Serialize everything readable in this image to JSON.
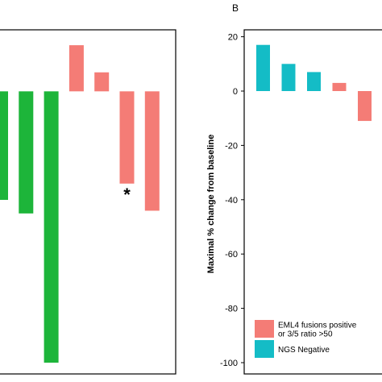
{
  "panel_b_label": "B",
  "colors": {
    "green": "#1db53a",
    "salmon": "#f47c76",
    "teal": "#14bcc6"
  },
  "chart_data": [
    {
      "panel": "A",
      "type": "bar",
      "partial": true,
      "bars": [
        {
          "value": -40,
          "color": "green"
        },
        {
          "value": -45,
          "color": "green"
        },
        {
          "value": -100,
          "color": "green"
        },
        {
          "value": 17,
          "color": "salmon"
        },
        {
          "value": 7,
          "color": "salmon"
        },
        {
          "value": -34,
          "color": "salmon",
          "annotation": "*"
        },
        {
          "value": -44,
          "color": "salmon"
        }
      ],
      "ylim": [
        -100,
        20
      ]
    },
    {
      "panel": "B",
      "type": "bar",
      "ylabel": "Maximal % change from baseline",
      "yticks": [
        20,
        0,
        -20,
        -40,
        -60,
        -80,
        -100
      ],
      "ylim": [
        -103,
        23
      ],
      "bars": [
        {
          "value": 17,
          "color": "teal"
        },
        {
          "value": 10,
          "color": "teal"
        },
        {
          "value": 7,
          "color": "teal"
        },
        {
          "value": 3,
          "color": "salmon"
        },
        {
          "value": -11,
          "color": "salmon"
        }
      ],
      "legend": [
        {
          "label_lines": [
            "EML4 fusions positive",
            "or 3/5 ratio >50"
          ],
          "color": "salmon"
        },
        {
          "label_lines": [
            "NGS Negative"
          ],
          "color": "teal"
        }
      ],
      "legend_position": "bottom-right"
    }
  ]
}
